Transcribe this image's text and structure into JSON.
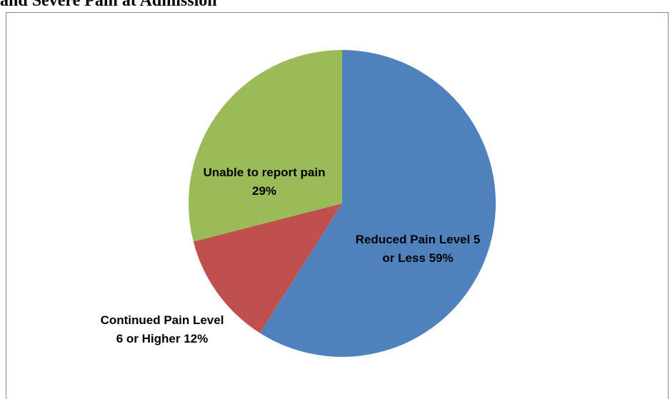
{
  "chart_data": {
    "type": "pie",
    "title": "and Severe Pain at Admission",
    "categories": [
      "Reduced Pain Level 5 or Less",
      "Continued Pain Level  6 or Higher",
      "Unable to report pain"
    ],
    "values": [
      59,
      12,
      29
    ],
    "value_labels": [
      "59%",
      "12%",
      "29%"
    ],
    "colors": [
      "#4f81bd",
      "#c0504d",
      "#9bbb59"
    ]
  }
}
